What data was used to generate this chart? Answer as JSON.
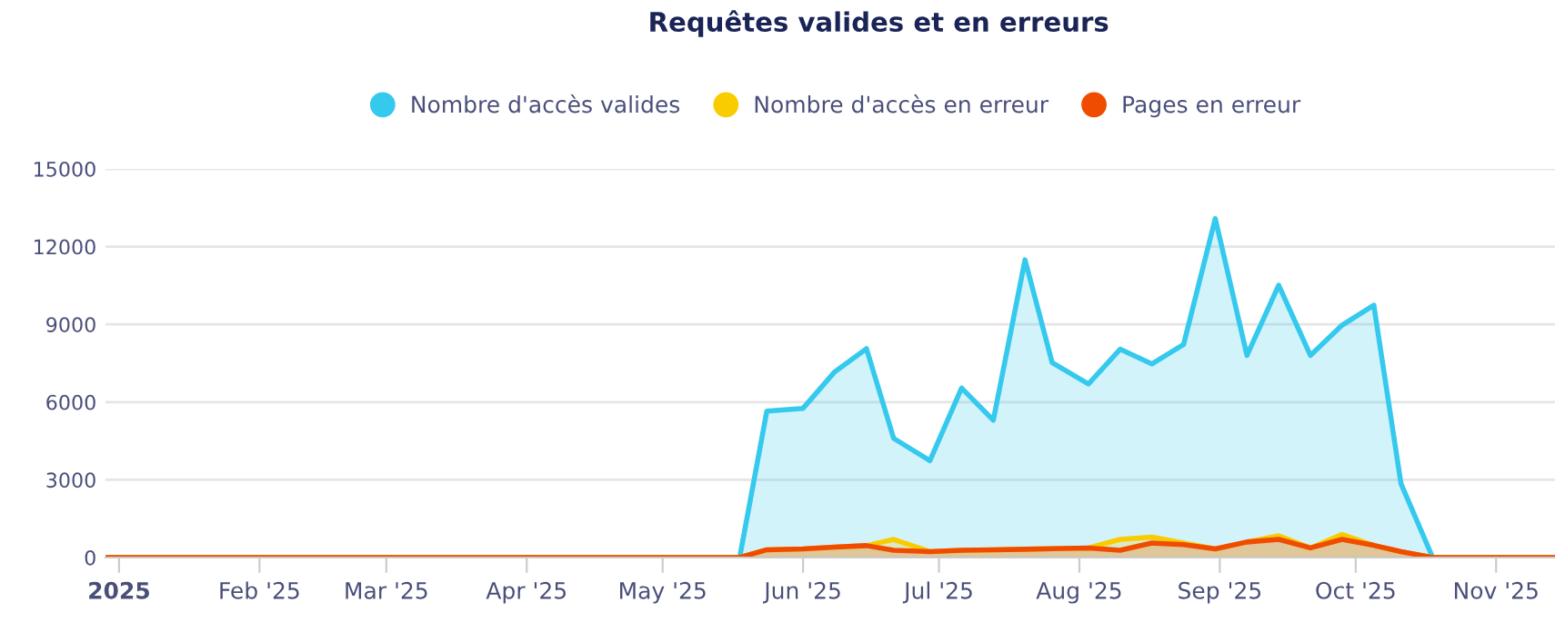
{
  "chart_data": {
    "type": "area",
    "title": "Requêtes valides et en erreurs",
    "x": [
      "2024-12-29",
      "2025-05-18",
      "2025-05-24",
      "2025-06-01",
      "2025-06-08",
      "2025-06-15",
      "2025-06-21",
      "2025-06-29",
      "2025-07-06",
      "2025-07-13",
      "2025-07-20",
      "2025-07-26",
      "2025-08-03",
      "2025-08-10",
      "2025-08-17",
      "2025-08-24",
      "2025-08-31",
      "2025-09-07",
      "2025-09-14",
      "2025-09-21",
      "2025-09-28",
      "2025-10-05",
      "2025-10-11",
      "2025-10-18",
      "2025-11-14"
    ],
    "series": [
      {
        "name": "Nombre d'accès valides",
        "color": "#36c9ee",
        "values": [
          0,
          0,
          5650,
          5760,
          7170,
          8060,
          4600,
          3740,
          6540,
          5300,
          11490,
          7520,
          6700,
          8040,
          7470,
          8220,
          13080,
          7800,
          10510,
          7800,
          8970,
          9740,
          2850,
          0,
          0
        ]
      },
      {
        "name": "Nombre d'accès en erreur",
        "color": "#f9cc00",
        "values": [
          0,
          0,
          300,
          330,
          400,
          460,
          700,
          230,
          280,
          300,
          320,
          340,
          370,
          700,
          790,
          560,
          330,
          600,
          840,
          370,
          890,
          470,
          230,
          0,
          0
        ]
      },
      {
        "name": "Pages en erreur",
        "color": "#f04c00",
        "values": [
          0,
          0,
          300,
          330,
          400,
          460,
          280,
          230,
          280,
          300,
          320,
          340,
          370,
          280,
          560,
          500,
          330,
          600,
          700,
          370,
          700,
          470,
          230,
          0,
          0
        ]
      }
    ],
    "xlim": [
      "2024-12-29",
      "2025-11-14"
    ],
    "xticks": [
      {
        "value": "2025-01-01",
        "label": "2025"
      },
      {
        "value": "2025-02-01",
        "label": "Feb '25"
      },
      {
        "value": "2025-03-01",
        "label": "Mar '25"
      },
      {
        "value": "2025-04-01",
        "label": "Apr '25"
      },
      {
        "value": "2025-05-01",
        "label": "May '25"
      },
      {
        "value": "2025-06-01",
        "label": "Jun '25"
      },
      {
        "value": "2025-07-01",
        "label": "Jul '25"
      },
      {
        "value": "2025-08-01",
        "label": "Aug '25"
      },
      {
        "value": "2025-09-01",
        "label": "Sep '25"
      },
      {
        "value": "2025-10-01",
        "label": "Oct '25"
      },
      {
        "value": "2025-11-01",
        "label": "Nov '25"
      }
    ],
    "ylim": [
      0,
      15000
    ],
    "yticks": [
      0,
      3000,
      6000,
      9000,
      12000,
      15000
    ],
    "grid": "y",
    "legend": "top",
    "marker": "none",
    "line_style": "solid"
  }
}
